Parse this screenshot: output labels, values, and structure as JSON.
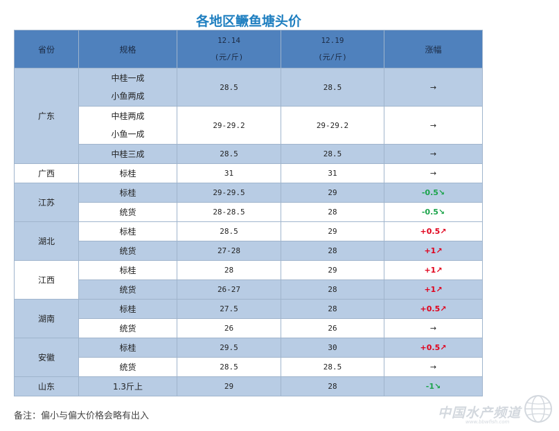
{
  "title": "各地区鳜鱼塘头价",
  "headers": {
    "province": "省份",
    "spec": "规格",
    "date1": "12.14",
    "date2": "12.19",
    "unit": "(元/斤)",
    "change": "涨幅"
  },
  "rows": {
    "gd_prov": "广东",
    "gd1_spec_a": "中桂一成",
    "gd1_spec_b": "小鱼两成",
    "gd1_p1": "28.5",
    "gd1_p2": "28.5",
    "gd1_chg": "→",
    "gd2_spec_a": "中桂两成",
    "gd2_spec_b": "小鱼一成",
    "gd2_p1": "29-29.2",
    "gd2_p2": "29-29.2",
    "gd2_chg": "→",
    "gd3_spec": "中桂三成",
    "gd3_p1": "28.5",
    "gd3_p2": "28.5",
    "gd3_chg": "→",
    "gx_prov": "广西",
    "gx_spec": "标桂",
    "gx_p1": "31",
    "gx_p2": "31",
    "gx_chg": "→",
    "js_prov": "江苏",
    "js1_spec": "标桂",
    "js1_p1": "29-29.5",
    "js1_p2": "29",
    "js1_chg": "-0.5↘",
    "js2_spec": "统货",
    "js2_p1": "28-28.5",
    "js2_p2": "28",
    "js2_chg": "-0.5↘",
    "hb_prov": "湖北",
    "hb1_spec": "标桂",
    "hb1_p1": "28.5",
    "hb1_p2": "29",
    "hb1_chg": "+0.5↗",
    "hb2_spec": "统货",
    "hb2_p1": "27-28",
    "hb2_p2": "28",
    "hb2_chg": "+1↗",
    "jx_prov": "江西",
    "jx1_spec": "标桂",
    "jx1_p1": "28",
    "jx1_p2": "29",
    "jx1_chg": "+1↗",
    "jx2_spec": "统货",
    "jx2_p1": "26-27",
    "jx2_p2": "28",
    "jx2_chg": "+1↗",
    "hn_prov": "湖南",
    "hn1_spec": "标桂",
    "hn1_p1": "27.5",
    "hn1_p2": "28",
    "hn1_chg": "+0.5↗",
    "hn2_spec": "统货",
    "hn2_p1": "26",
    "hn2_p2": "26",
    "hn2_chg": "→",
    "ah_prov": "安徽",
    "ah1_spec": "标桂",
    "ah1_p1": "29.5",
    "ah1_p2": "30",
    "ah1_chg": "+0.5↗",
    "ah2_spec": "统货",
    "ah2_p1": "28.5",
    "ah2_p2": "28.5",
    "ah2_chg": "→",
    "sd_prov": "山东",
    "sd_spec": "1.3斤上",
    "sd_p1": "29",
    "sd_p2": "28",
    "sd_chg": "-1↘"
  },
  "note": "备注：偏小与偏大价格会略有出入",
  "watermark": {
    "brand": "中国水产频道",
    "url": "www.bbwfish.com"
  },
  "colors": {
    "header_bg": "#4f81bd",
    "band_bg": "#b8cce4",
    "title": "#1f7fc0",
    "up": "#e0001b",
    "down": "#1aa34a"
  }
}
